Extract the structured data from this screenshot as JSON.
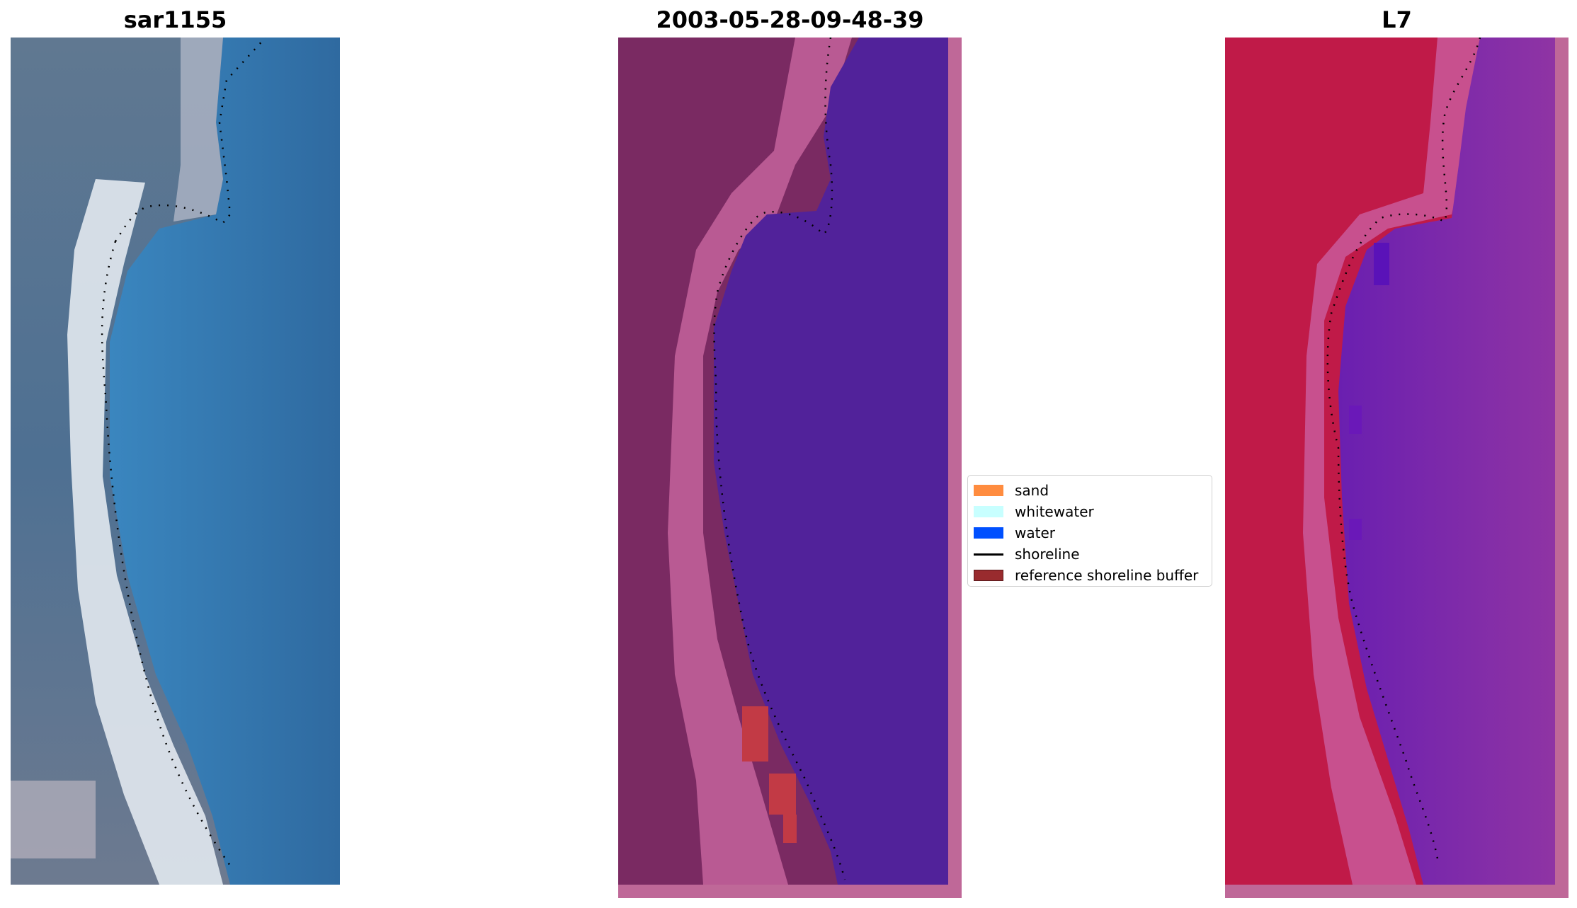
{
  "panels": [
    {
      "title": "sar1155"
    },
    {
      "title": "2003-05-28-09-48-39"
    },
    {
      "title": "L7"
    }
  ],
  "legend": {
    "items": [
      {
        "label": "sand",
        "color": "#ff8c3f",
        "kind": "patch"
      },
      {
        "label": "whitewater",
        "color": "#c8ffff",
        "kind": "patch"
      },
      {
        "label": "water",
        "color": "#0050ff",
        "kind": "patch"
      },
      {
        "label": "shoreline",
        "color": "#000000",
        "kind": "line"
      },
      {
        "label": "reference shoreline buffer",
        "color": "#992b2e",
        "kind": "patch"
      }
    ]
  },
  "colors": {
    "rgb_water": "#3472a8",
    "rgb_land": "#5a7490",
    "rgb_beach": "#e8eef4",
    "classified_land": "#7a2a62",
    "classified_beach": "#b95a93",
    "classified_water": "#51229a",
    "classified_buffer": "#c23a45",
    "mndwi_land": "#c01a48",
    "mndwi_beach": "#c8508e",
    "mndwi_water": "#8a30a6",
    "edge_strip": "#bf6898"
  }
}
